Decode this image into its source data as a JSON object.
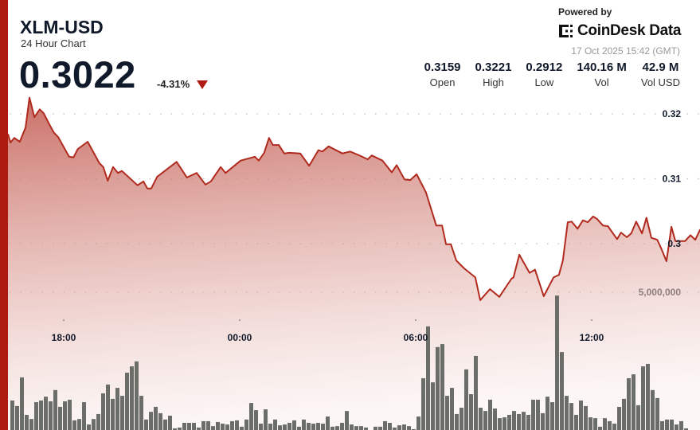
{
  "header": {
    "title": "XLM-USD",
    "subtitle": "24 Hour Chart",
    "price": "0.3022",
    "change": "-4.31%",
    "change_direction": "down",
    "powered_by": "Powered by",
    "brand": "CoinDesk Data",
    "timestamp": "17 Oct 2025 15:42 (GMT)"
  },
  "stats": [
    {
      "value": "0.3159",
      "label": "Open"
    },
    {
      "value": "0.3221",
      "label": "High"
    },
    {
      "value": "0.2912",
      "label": "Low"
    },
    {
      "value": "140.16 M",
      "label": "Vol"
    },
    {
      "value": "42.9 M",
      "label": "Vol USD"
    }
  ],
  "colors": {
    "accent": "#ad1a10",
    "line": "#b02a1e",
    "volume": "#6b6e68",
    "down": "#b01a10"
  },
  "chart_data": {
    "type": "area",
    "grid": true,
    "price_axis": {
      "ticks": [
        0.32,
        0.31,
        0.3
      ],
      "tick_labels": [
        "0.32",
        "0.31",
        "0.3"
      ]
    },
    "volume_axis": {
      "ticks": [
        5000000
      ],
      "tick_labels": [
        "5,000,000"
      ],
      "unit": "M"
    },
    "x_ticks": [
      "18:00",
      "00:00",
      "06:00",
      "12:00"
    ],
    "price_series": [
      [
        "16:06",
        0.3169
      ],
      [
        "16:11",
        0.3156
      ],
      [
        "16:19",
        0.3163
      ],
      [
        "16:30",
        0.3157
      ],
      [
        "16:42",
        0.3179
      ],
      [
        "16:50",
        0.3225
      ],
      [
        "17:00",
        0.3195
      ],
      [
        "17:11",
        0.3207
      ],
      [
        "17:19",
        0.3201
      ],
      [
        "17:32",
        0.3182
      ],
      [
        "17:40",
        0.3171
      ],
      [
        "17:49",
        0.3164
      ],
      [
        "18:11",
        0.3134
      ],
      [
        "18:20",
        0.3133
      ],
      [
        "18:29",
        0.3146
      ],
      [
        "18:49",
        0.3157
      ],
      [
        "19:13",
        0.3124
      ],
      [
        "19:21",
        0.3118
      ],
      [
        "19:30",
        0.3097
      ],
      [
        "19:41",
        0.3118
      ],
      [
        "19:51",
        0.3109
      ],
      [
        "19:59",
        0.3112
      ],
      [
        "20:31",
        0.309
      ],
      [
        "20:43",
        0.3096
      ],
      [
        "20:51",
        0.3085
      ],
      [
        "20:59",
        0.3085
      ],
      [
        "21:11",
        0.3103
      ],
      [
        "21:37",
        0.3118
      ],
      [
        "21:51",
        0.3126
      ],
      [
        "22:12",
        0.3102
      ],
      [
        "22:32",
        0.3109
      ],
      [
        "22:50",
        0.3091
      ],
      [
        "23:01",
        0.3096
      ],
      [
        "23:21",
        0.3118
      ],
      [
        "23:31",
        0.3109
      ],
      [
        "00:02",
        0.3128
      ],
      [
        "00:31",
        0.3134
      ],
      [
        "00:39",
        0.3128
      ],
      [
        "00:50",
        0.314
      ],
      [
        "01:00",
        0.3163
      ],
      [
        "01:08",
        0.3152
      ],
      [
        "01:20",
        0.3152
      ],
      [
        "01:31",
        0.3139
      ],
      [
        "01:41",
        0.314
      ],
      [
        "02:04",
        0.3139
      ],
      [
        "02:22",
        0.312
      ],
      [
        "02:41",
        0.3144
      ],
      [
        "02:49",
        0.3142
      ],
      [
        "03:02",
        0.315
      ],
      [
        "03:30",
        0.3139
      ],
      [
        "03:46",
        0.3142
      ],
      [
        "04:08",
        0.3135
      ],
      [
        "04:22",
        0.313
      ],
      [
        "04:30",
        0.3136
      ],
      [
        "04:52",
        0.3128
      ],
      [
        "05:11",
        0.311
      ],
      [
        "05:21",
        0.3121
      ],
      [
        "05:37",
        0.3099
      ],
      [
        "05:49",
        0.3098
      ],
      [
        "06:02",
        0.3107
      ],
      [
        "06:21",
        0.3079
      ],
      [
        "06:42",
        0.3028
      ],
      [
        "06:54",
        0.3028
      ],
      [
        "07:02",
        0.2999
      ],
      [
        "07:12",
        0.2999
      ],
      [
        "07:23",
        0.2974
      ],
      [
        "07:39",
        0.2962
      ],
      [
        "08:02",
        0.2948
      ],
      [
        "08:12",
        0.2913
      ],
      [
        "08:32",
        0.293
      ],
      [
        "08:51",
        0.2918
      ],
      [
        "09:16",
        0.2946
      ],
      [
        "09:20",
        0.2948
      ],
      [
        "09:32",
        0.2983
      ],
      [
        "09:53",
        0.2955
      ],
      [
        "10:04",
        0.296
      ],
      [
        "10:22",
        0.2919
      ],
      [
        "10:42",
        0.2948
      ],
      [
        "10:53",
        0.2952
      ],
      [
        "11:01",
        0.2974
      ],
      [
        "11:11",
        0.3033
      ],
      [
        "11:19",
        0.3034
      ],
      [
        "11:31",
        0.3023
      ],
      [
        "11:42",
        0.3036
      ],
      [
        "11:52",
        0.3033
      ],
      [
        "12:03",
        0.3042
      ],
      [
        "12:11",
        0.3038
      ],
      [
        "12:23",
        0.3028
      ],
      [
        "12:33",
        0.3027
      ],
      [
        "12:52",
        0.3007
      ],
      [
        "13:00",
        0.3017
      ],
      [
        "13:12",
        0.301
      ],
      [
        "13:21",
        0.3016
      ],
      [
        "13:31",
        0.3034
      ],
      [
        "13:43",
        0.3016
      ],
      [
        "13:52",
        0.304
      ],
      [
        "14:02",
        0.3009
      ],
      [
        "14:14",
        0.3006
      ],
      [
        "14:22",
        0.2993
      ],
      [
        "14:33",
        0.2973
      ],
      [
        "14:43",
        0.3026
      ],
      [
        "14:51",
        0.3004
      ],
      [
        "15:11",
        0.3004
      ],
      [
        "15:22",
        0.3013
      ],
      [
        "15:32",
        0.3006
      ],
      [
        "15:42",
        0.3022
      ]
    ],
    "volume_millions": [
      1.07,
      0.87,
      1.91,
      0.55,
      0.4,
      1.01,
      1.07,
      1.21,
      1.04,
      1.45,
      0.84,
      1.04,
      1.1,
      0.35,
      0.4,
      1.01,
      0.2,
      0.4,
      0.58,
      1.33,
      1.65,
      1.13,
      1.53,
      1.24,
      2.08,
      2.31,
      2.49,
      1.24,
      0.38,
      0.66,
      0.84,
      0.61,
      0.38,
      0.52,
      0.06,
      0.09,
      0.26,
      0.26,
      0.26,
      0.09,
      0.32,
      0.32,
      0.14,
      0.29,
      0.23,
      0.2,
      0.32,
      0.35,
      0.12,
      0.38,
      0.98,
      0.72,
      0.23,
      0.75,
      0.23,
      0.38,
      0.17,
      0.2,
      0.26,
      0.35,
      0.12,
      0.38,
      0.26,
      0.23,
      0.26,
      0.23,
      0.49,
      0.12,
      0.14,
      0.26,
      0.69,
      0.2,
      0.14,
      0.14,
      0.09,
      0,
      0.12,
      0.12,
      0.32,
      0.26,
      0.09,
      0.17,
      0.2,
      0.14,
      0.03,
      0.49,
      1.88,
      3.76,
      1.73,
      3.01,
      3.12,
      1.24,
      1.53,
      0.58,
      0.81,
      2.2,
      1.3,
      2.69,
      0.81,
      0.69,
      1.1,
      0.78,
      0.43,
      0.46,
      0.55,
      0.69,
      0.58,
      0.66,
      0.55,
      1.1,
      1.1,
      0.61,
      1.21,
      1.01,
      4.88,
      2.83,
      1.24,
      0.98,
      0.55,
      1.07,
      0.87,
      0.46,
      0.43,
      0.12,
      0.43,
      0.32,
      0.23,
      0.84,
      1.13,
      1.88,
      2.02,
      0.9,
      2.31,
      2.4,
      1.45,
      1.16,
      0.32,
      0.38,
      0.38,
      0.2,
      0.32,
      0.06
    ]
  }
}
